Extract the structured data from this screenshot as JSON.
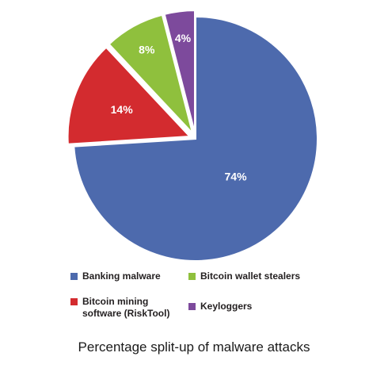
{
  "caption": "Percentage split-up of malware attacks",
  "chart_data": {
    "type": "pie",
    "title": "",
    "categories": [
      "Banking malware",
      "Bitcoin mining software (RiskTool)",
      "Bitcoin wallet stealers",
      "Keyloggers"
    ],
    "values": [
      74,
      14,
      8,
      4
    ],
    "value_labels": [
      "74%",
      "14%",
      "8%",
      "4%"
    ],
    "colors": [
      "#4d6aad",
      "#d32b2f",
      "#8fc03d",
      "#7d4a9c"
    ],
    "start_angle_deg": 0,
    "direction": "clockwise",
    "exploded_slices": [
      "Bitcoin mining software (RiskTool)",
      "Bitcoin wallet stealers",
      "Keyloggers"
    ],
    "legend": {
      "placement": "bottom",
      "entries": [
        {
          "label": "Banking malware",
          "color": "#4d6aad"
        },
        {
          "label": "Bitcoin wallet stealers",
          "color": "#8fc03d"
        },
        {
          "label": "Bitcoin mining\nsoftware (RiskTool)",
          "color": "#d32b2f"
        },
        {
          "label": "Keyloggers",
          "color": "#7d4a9c"
        }
      ]
    }
  }
}
